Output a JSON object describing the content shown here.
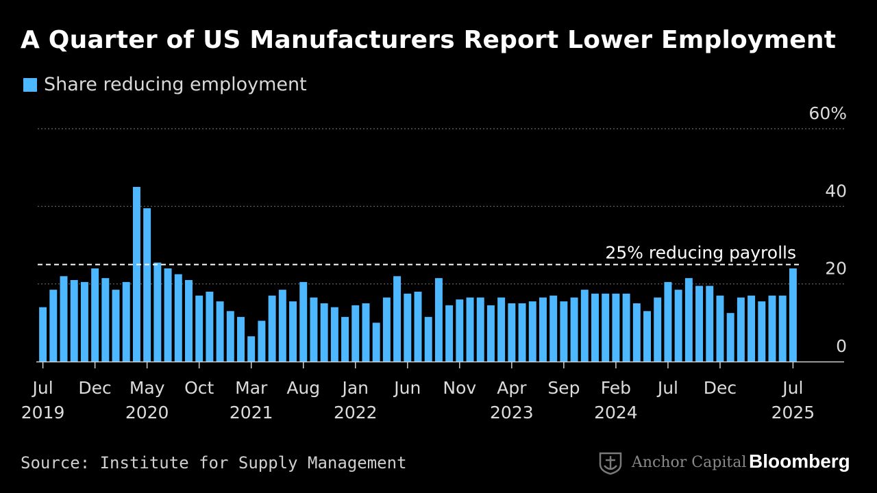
{
  "header": {
    "title": "A Quarter of US Manufacturers Report Lower Employment"
  },
  "legend": {
    "label": "Share reducing employment",
    "color": "#4db8ff"
  },
  "footer": {
    "source": "Source: Institute for Supply Management",
    "partner": "Anchor Capital",
    "brand": "Bloomberg"
  },
  "chart_data": {
    "type": "bar",
    "series": [
      {
        "name": "Share reducing employment",
        "color": "#4db8ff",
        "values": [
          14,
          18.5,
          22,
          21,
          20.5,
          24,
          21.5,
          18.5,
          20.5,
          45,
          39.5,
          25.5,
          24,
          22.5,
          21,
          17,
          18,
          15.5,
          13,
          11.5,
          6.5,
          10.5,
          17,
          18.5,
          15.5,
          20.5,
          16.5,
          15,
          14,
          11.5,
          14.5,
          15,
          10,
          16.5,
          22,
          17.5,
          18,
          11.5,
          21.5,
          14.5,
          16,
          16.5,
          16.5,
          14.5,
          16.5,
          15,
          15,
          15.5,
          16.5,
          17,
          15.5,
          16.5,
          18.5,
          17.5,
          17.5,
          17.5,
          17.5,
          15,
          13,
          16.5,
          20.5,
          18.5,
          21.5,
          19.5,
          19.5,
          17,
          12.5,
          16.5,
          17,
          15.5,
          17,
          17,
          24
        ]
      }
    ],
    "x_start": "2019-07",
    "x_end": "2025-07",
    "x_ticks": [
      {
        "index": 0,
        "month": "Jul",
        "year": "2019"
      },
      {
        "index": 5,
        "month": "Dec",
        "year": ""
      },
      {
        "index": 10,
        "month": "May",
        "year": "2020"
      },
      {
        "index": 15,
        "month": "Oct",
        "year": ""
      },
      {
        "index": 20,
        "month": "Mar",
        "year": "2021"
      },
      {
        "index": 25,
        "month": "Aug",
        "year": ""
      },
      {
        "index": 30,
        "month": "Jan",
        "year": "2022"
      },
      {
        "index": 35,
        "month": "Jun",
        "year": ""
      },
      {
        "index": 40,
        "month": "Nov",
        "year": ""
      },
      {
        "index": 45,
        "month": "Apr",
        "year": "2023"
      },
      {
        "index": 50,
        "month": "Sep",
        "year": ""
      },
      {
        "index": 55,
        "month": "Feb",
        "year": "2024"
      },
      {
        "index": 60,
        "month": "Jul",
        "year": ""
      },
      {
        "index": 65,
        "month": "Dec",
        "year": ""
      },
      {
        "index": 72,
        "month": "Jul",
        "year": "2025"
      }
    ],
    "y_ticks": [
      {
        "value": 0,
        "label": "0"
      },
      {
        "value": 20,
        "label": "20"
      },
      {
        "value": 40,
        "label": "40"
      },
      {
        "value": 60,
        "label": "60%"
      }
    ],
    "ylim": [
      0,
      60
    ],
    "y_axis_position": "right",
    "grid": true,
    "reference_line": {
      "value": 25,
      "label": "25% reducing payrolls"
    }
  }
}
